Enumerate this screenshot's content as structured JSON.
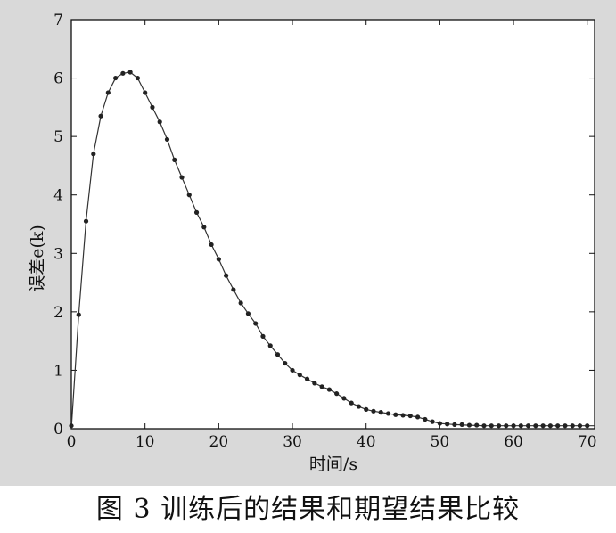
{
  "caption": "图 3   训练后的结果和期望结果比较",
  "chart_data": {
    "type": "line",
    "title": "",
    "xlabel": "时间/s",
    "ylabel": "误差e(k)",
    "xlim": [
      0,
      71
    ],
    "ylim": [
      0,
      7
    ],
    "xticks": [
      0,
      10,
      20,
      30,
      40,
      50,
      60,
      70
    ],
    "yticks": [
      0,
      1,
      2,
      3,
      4,
      5,
      6,
      7
    ],
    "grid": false,
    "colors": {
      "line": "#333333",
      "marker": "#222222",
      "axes": "#111111"
    },
    "series": [
      {
        "style": "line",
        "x": [
          0,
          1,
          2,
          3,
          4,
          5,
          6,
          7,
          8,
          9,
          10,
          11,
          12,
          13,
          14,
          15,
          16,
          17,
          18,
          19,
          20,
          21,
          22,
          23,
          24,
          25,
          26,
          27,
          28,
          29,
          30,
          31,
          32,
          33,
          34,
          35,
          36,
          37,
          38,
          39,
          40,
          41,
          42,
          43,
          44,
          45,
          46,
          47,
          48,
          49,
          50,
          52,
          54,
          56,
          58,
          60,
          62,
          64,
          66,
          68,
          70,
          71
        ],
        "values": [
          0,
          1.95,
          3.55,
          4.7,
          5.35,
          5.75,
          6.0,
          6.08,
          6.1,
          6.0,
          5.75,
          5.5,
          5.25,
          4.95,
          4.6,
          4.3,
          4.0,
          3.7,
          3.45,
          3.15,
          2.9,
          2.62,
          2.38,
          2.15,
          1.97,
          1.8,
          1.58,
          1.42,
          1.27,
          1.12,
          1.0,
          0.92,
          0.85,
          0.78,
          0.72,
          0.67,
          0.6,
          0.52,
          0.44,
          0.38,
          0.33,
          0.3,
          0.28,
          0.26,
          0.24,
          0.23,
          0.22,
          0.2,
          0.16,
          0.12,
          0.09,
          0.07,
          0.06,
          0.05,
          0.05,
          0.05,
          0.05,
          0.05,
          0.05,
          0.05,
          0.05,
          0.05
        ]
      },
      {
        "style": "markers",
        "x": [
          0,
          1,
          2,
          3,
          4,
          5,
          6,
          7,
          8,
          9,
          10,
          11,
          12,
          13,
          14,
          15,
          16,
          17,
          18,
          19,
          20,
          21,
          22,
          23,
          24,
          25,
          26,
          27,
          28,
          29,
          30,
          31,
          32,
          33,
          34,
          35,
          36,
          37,
          38,
          39,
          40,
          41,
          42,
          43,
          44,
          45,
          46,
          47,
          48,
          49,
          50,
          51,
          52,
          53,
          54,
          55,
          56,
          57,
          58,
          59,
          60,
          61,
          62,
          63,
          64,
          65,
          66,
          67,
          68,
          69,
          70
        ],
        "values": [
          0.05,
          1.95,
          3.55,
          4.7,
          5.35,
          5.75,
          6.0,
          6.08,
          6.1,
          6.0,
          5.75,
          5.5,
          5.25,
          4.95,
          4.6,
          4.3,
          4.0,
          3.7,
          3.45,
          3.15,
          2.9,
          2.62,
          2.38,
          2.15,
          1.97,
          1.8,
          1.58,
          1.42,
          1.27,
          1.12,
          1.0,
          0.92,
          0.85,
          0.78,
          0.72,
          0.67,
          0.6,
          0.52,
          0.44,
          0.38,
          0.33,
          0.3,
          0.28,
          0.26,
          0.24,
          0.23,
          0.22,
          0.2,
          0.16,
          0.12,
          0.09,
          0.08,
          0.07,
          0.07,
          0.06,
          0.06,
          0.05,
          0.05,
          0.05,
          0.05,
          0.05,
          0.05,
          0.05,
          0.05,
          0.05,
          0.05,
          0.05,
          0.05,
          0.05,
          0.05,
          0.05
        ]
      }
    ]
  }
}
